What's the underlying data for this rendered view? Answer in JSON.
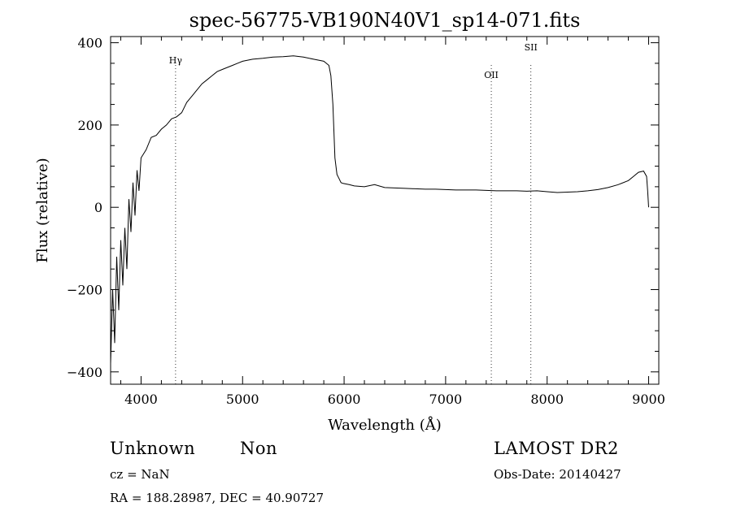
{
  "chart_data": {
    "type": "line",
    "title": "spec-56775-VB190N40V1_sp14-071.fits",
    "xlabel": "Wavelength (Å)",
    "ylabel": "Flux (relative)",
    "xlim": [
      3700,
      9100
    ],
    "ylim": [
      -430,
      415
    ],
    "x_ticks": [
      4000,
      5000,
      6000,
      7000,
      8000,
      9000
    ],
    "y_ticks": [
      -400,
      -200,
      0,
      200,
      400
    ],
    "grid": false,
    "series": [
      {
        "x": [
          3700,
          3720,
          3740,
          3760,
          3780,
          3800,
          3820,
          3840,
          3860,
          3880,
          3900,
          3920,
          3940,
          3960,
          3980,
          4000,
          4050,
          4100,
          4150,
          4200,
          4250,
          4300,
          4350,
          4400,
          4450,
          4500,
          4550,
          4600,
          4650,
          4700,
          4750,
          4800,
          4850,
          4900,
          4950,
          5000,
          5100,
          5200,
          5300,
          5400,
          5500,
          5600,
          5700,
          5800,
          5850,
          5870,
          5890,
          5910,
          5930,
          5950,
          5970,
          5990,
          6050,
          6100,
          6200,
          6300,
          6400,
          6500,
          6600,
          6700,
          6800,
          6900,
          7000,
          7100,
          7200,
          7300,
          7400,
          7500,
          7600,
          7700,
          7800,
          7900,
          8000,
          8100,
          8200,
          8300,
          8400,
          8500,
          8600,
          8700,
          8800,
          8850,
          8900,
          8950,
          8980,
          8990,
          9000
        ],
        "y": [
          -380,
          -200,
          -330,
          -120,
          -250,
          -80,
          -190,
          -50,
          -150,
          20,
          -60,
          60,
          -20,
          90,
          40,
          120,
          140,
          170,
          175,
          190,
          200,
          215,
          220,
          230,
          255,
          270,
          285,
          300,
          310,
          320,
          330,
          335,
          340,
          345,
          350,
          355,
          360,
          362,
          365,
          366,
          368,
          365,
          360,
          355,
          345,
          320,
          250,
          120,
          80,
          70,
          60,
          58,
          55,
          52,
          50,
          55,
          48,
          47,
          46,
          45,
          44,
          44,
          43,
          42,
          42,
          42,
          41,
          40,
          40,
          40,
          39,
          40,
          38,
          36,
          37,
          38,
          40,
          43,
          48,
          55,
          65,
          75,
          85,
          88,
          75,
          40,
          0
        ]
      }
    ],
    "lines": [
      {
        "label": "Hγ",
        "x": 4340
      },
      {
        "label": "OII",
        "x": 7450
      },
      {
        "label": "SII",
        "x": 7840
      }
    ]
  },
  "footer": {
    "object_class": "Unknown",
    "subclass": "Non",
    "survey": "LAMOST DR2",
    "cz": "cz = NaN",
    "obs_date": "Obs-Date: 20140427",
    "coords": "RA = 188.28987, DEC =  40.90727"
  }
}
